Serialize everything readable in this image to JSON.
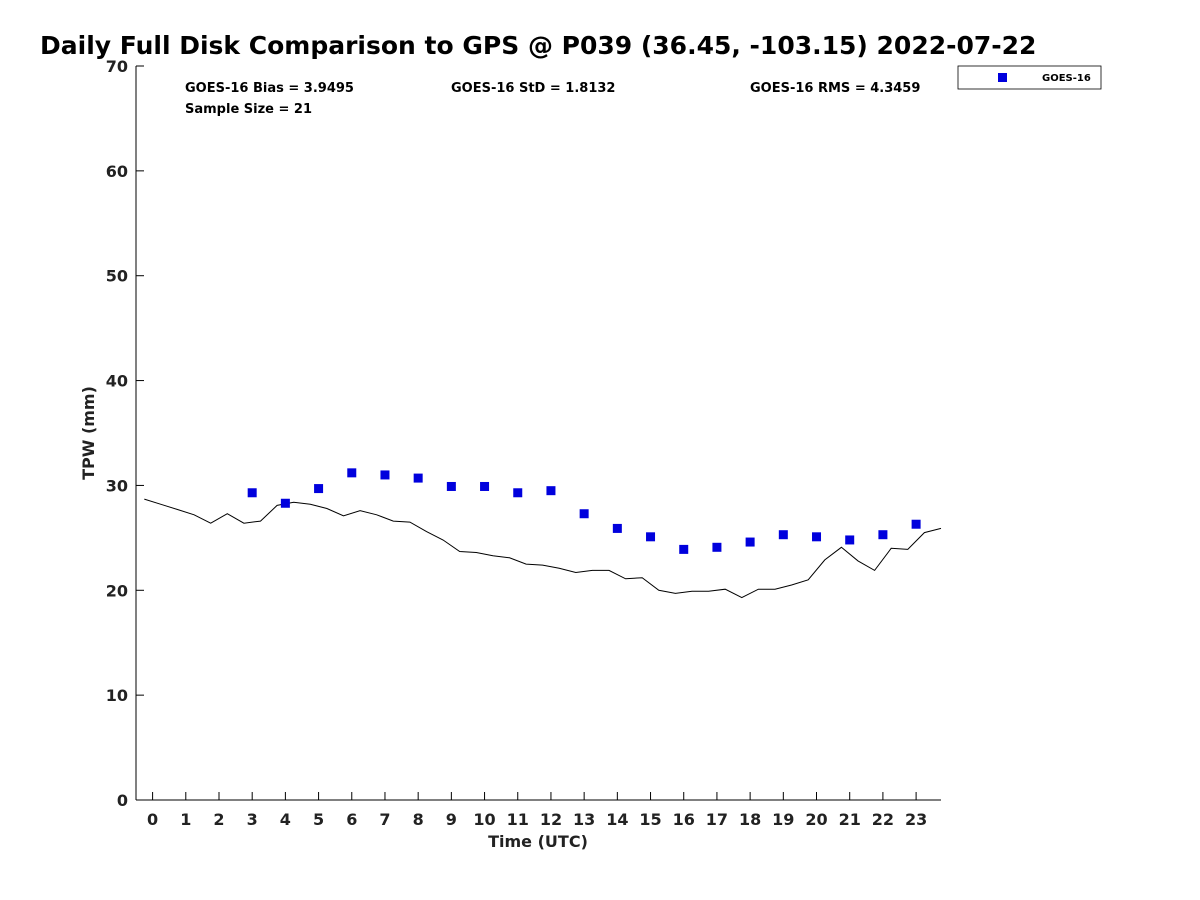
{
  "chart_data": {
    "type": "scatter",
    "title": "Daily Full Disk Comparison to GPS @ P039 (36.45, -103.15) 2022-07-22",
    "xlabel": "Time (UTC)",
    "ylabel": "TPW (mm)",
    "xlim": [
      -0.5,
      23.75
    ],
    "ylim": [
      0,
      70
    ],
    "x_ticks": [
      0,
      1,
      2,
      3,
      4,
      5,
      6,
      7,
      8,
      9,
      10,
      11,
      12,
      13,
      14,
      15,
      16,
      17,
      18,
      19,
      20,
      21,
      22,
      23
    ],
    "y_ticks": [
      0,
      10,
      20,
      30,
      40,
      50,
      60,
      70
    ],
    "grid": false,
    "legend": {
      "position": "top-right",
      "entries": [
        "GOES-16"
      ]
    },
    "stats": {
      "bias": "GOES-16 Bias = 3.9495",
      "std": "GOES-16 StD = 1.8132",
      "rms": "GOES-16 RMS = 4.3459",
      "sample_size": "Sample Size = 21"
    },
    "series": [
      {
        "name": "GOES-16",
        "kind": "scatter",
        "color": "#0000dd",
        "marker": "square",
        "x": [
          3,
          4,
          5,
          6,
          7,
          8,
          9,
          10,
          11,
          12,
          13,
          14,
          15,
          16,
          17,
          18,
          19,
          20,
          21,
          22,
          23
        ],
        "y": [
          29.3,
          28.3,
          29.7,
          31.2,
          31.0,
          30.7,
          29.9,
          29.9,
          29.3,
          29.5,
          27.3,
          25.9,
          25.1,
          23.9,
          24.1,
          24.6,
          25.3,
          25.1,
          24.8,
          25.3,
          26.3
        ]
      },
      {
        "kind": "line",
        "color": "#000000",
        "x": [
          -0.25,
          0.25,
          0.75,
          1.25,
          1.75,
          2.25,
          2.75,
          3.25,
          3.75,
          4.25,
          4.75,
          5.25,
          5.75,
          6.25,
          6.75,
          7.25,
          7.75,
          8.25,
          8.75,
          9.25,
          9.75,
          10.25,
          10.75,
          11.25,
          11.75,
          12.25,
          12.75,
          13.25,
          13.75,
          14.25,
          14.75,
          15.25,
          15.75,
          16.25,
          16.75,
          17.25,
          17.75,
          18.25,
          18.75,
          19.25,
          19.75,
          20.25,
          20.75,
          21.25,
          21.75,
          22.25,
          22.75,
          23.25,
          23.75
        ],
        "y": [
          28.7,
          28.2,
          27.7,
          27.2,
          26.4,
          27.3,
          26.4,
          26.6,
          28.1,
          28.4,
          28.2,
          27.8,
          27.1,
          27.6,
          27.2,
          26.6,
          26.5,
          25.6,
          24.8,
          23.7,
          23.6,
          23.3,
          23.1,
          22.5,
          22.4,
          22.1,
          21.7,
          21.9,
          21.9,
          21.1,
          21.2,
          20.0,
          19.7,
          19.9,
          19.9,
          20.1,
          19.3,
          20.1,
          20.1,
          20.5,
          21.0,
          22.9,
          24.1,
          22.8,
          21.9,
          24.0,
          23.9,
          25.5,
          25.9
        ]
      }
    ]
  }
}
